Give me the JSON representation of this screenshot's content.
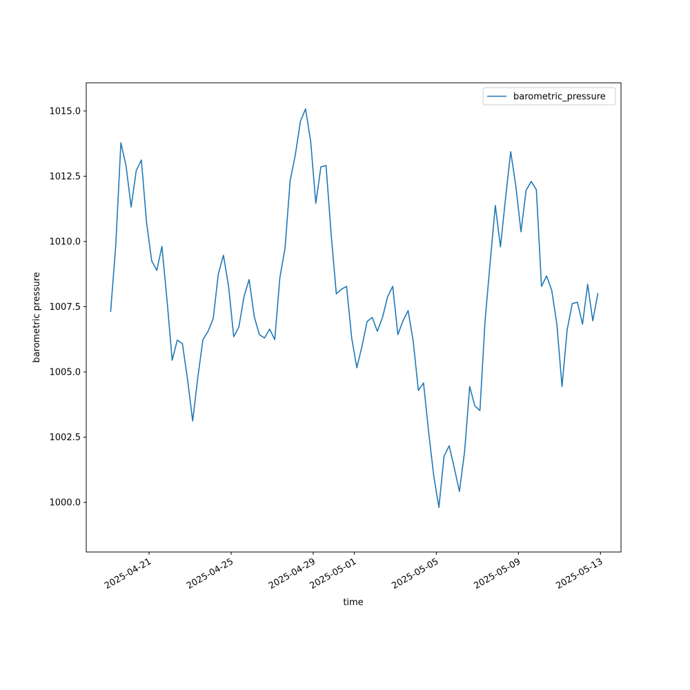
{
  "chart_data": {
    "type": "line",
    "xlabel": "time",
    "ylabel": "barometric pressure",
    "legend": "upper right",
    "x": [
      "2025-04-19 03:00",
      "2025-04-19 09:00",
      "2025-04-19 15:00",
      "2025-04-19 21:00",
      "2025-04-20 03:00",
      "2025-04-20 09:00",
      "2025-04-20 15:00",
      "2025-04-20 21:00",
      "2025-04-21 03:00",
      "2025-04-21 09:00",
      "2025-04-21 15:00",
      "2025-04-21 21:00",
      "2025-04-22 03:00",
      "2025-04-22 09:00",
      "2025-04-22 15:00",
      "2025-04-22 21:00",
      "2025-04-23 03:00",
      "2025-04-23 09:00",
      "2025-04-23 15:00",
      "2025-04-23 21:00",
      "2025-04-24 03:00",
      "2025-04-24 09:00",
      "2025-04-24 15:00",
      "2025-04-24 21:00",
      "2025-04-25 03:00",
      "2025-04-25 09:00",
      "2025-04-25 15:00",
      "2025-04-25 21:00",
      "2025-04-26 03:00",
      "2025-04-26 09:00",
      "2025-04-26 15:00",
      "2025-04-26 21:00",
      "2025-04-27 03:00",
      "2025-04-27 09:00",
      "2025-04-27 15:00",
      "2025-04-27 21:00",
      "2025-04-28 03:00",
      "2025-04-28 09:00",
      "2025-04-28 15:00",
      "2025-04-28 21:00",
      "2025-04-29 03:00",
      "2025-04-29 09:00",
      "2025-04-29 15:00",
      "2025-04-29 21:00",
      "2025-04-30 03:00",
      "2025-04-30 09:00",
      "2025-04-30 15:00",
      "2025-04-30 21:00",
      "2025-05-01 03:00",
      "2025-05-01 09:00",
      "2025-05-01 15:00",
      "2025-05-01 21:00",
      "2025-05-02 03:00",
      "2025-05-02 09:00",
      "2025-05-02 15:00",
      "2025-05-02 21:00",
      "2025-05-03 03:00",
      "2025-05-03 09:00",
      "2025-05-03 15:00",
      "2025-05-03 21:00",
      "2025-05-04 03:00",
      "2025-05-04 09:00",
      "2025-05-04 15:00",
      "2025-05-04 21:00",
      "2025-05-05 03:00",
      "2025-05-05 09:00",
      "2025-05-05 15:00",
      "2025-05-05 21:00",
      "2025-05-06 03:00",
      "2025-05-06 09:00",
      "2025-05-06 15:00",
      "2025-05-06 21:00",
      "2025-05-07 03:00",
      "2025-05-07 09:00",
      "2025-05-07 15:00",
      "2025-05-07 21:00",
      "2025-05-08 03:00",
      "2025-05-08 09:00",
      "2025-05-08 15:00",
      "2025-05-08 21:00",
      "2025-05-09 03:00",
      "2025-05-09 09:00",
      "2025-05-09 15:00",
      "2025-05-09 21:00",
      "2025-05-10 03:00",
      "2025-05-10 09:00",
      "2025-05-10 15:00",
      "2025-05-10 21:00",
      "2025-05-11 03:00",
      "2025-05-11 09:00",
      "2025-05-11 15:00",
      "2025-05-11 21:00",
      "2025-05-12 03:00",
      "2025-05-12 09:00",
      "2025-05-12 15:00",
      "2025-05-12 21:00"
    ],
    "series": [
      {
        "name": "barometric_pressure",
        "color": "#1f77b4",
        "values": [
          1007.3,
          1009.84,
          1013.78,
          1012.91,
          1011.32,
          1012.72,
          1013.12,
          1010.74,
          1009.26,
          1008.89,
          1009.81,
          1007.75,
          1005.45,
          1006.22,
          1006.08,
          1004.71,
          1003.12,
          1004.79,
          1006.24,
          1006.56,
          1007.04,
          1008.76,
          1009.47,
          1008.28,
          1006.35,
          1006.72,
          1007.88,
          1008.54,
          1007.12,
          1006.43,
          1006.3,
          1006.64,
          1006.24,
          1008.62,
          1009.74,
          1012.33,
          1013.31,
          1014.6,
          1015.08,
          1013.84,
          1011.46,
          1012.86,
          1012.91,
          1010.26,
          1007.99,
          1008.17,
          1008.28,
          1006.3,
          1005.16,
          1005.98,
          1006.93,
          1007.09,
          1006.56,
          1007.09,
          1007.88,
          1008.28,
          1006.43,
          1006.96,
          1007.35,
          1006.16,
          1004.29,
          1004.58,
          1002.7,
          1001.01,
          999.81,
          1001.77,
          1002.17,
          1001.32,
          1000.42,
          1001.93,
          1004.44,
          1003.7,
          1003.52,
          1006.96,
          1009.21,
          1011.38,
          1009.79,
          1011.67,
          1013.44,
          1012.12,
          1010.37,
          1011.96,
          1012.3,
          1011.98,
          1008.28,
          1008.68,
          1008.12,
          1006.83,
          1004.44,
          1006.61,
          1007.62,
          1007.67,
          1006.83,
          1008.36,
          1006.96,
          1008.02
        ]
      }
    ],
    "xlim": [
      "2025-04-17 22:30",
      "2025-05-14 00:00"
    ],
    "xticks": [
      "2025-04-21",
      "2025-04-25",
      "2025-04-29",
      "2025-05-01",
      "2025-05-05",
      "2025-05-09",
      "2025-05-13"
    ],
    "ylim": [
      998.1,
      1016.08
    ],
    "yticks": [
      {
        "value": 1000,
        "label": "1000.0"
      },
      {
        "value": 1002.5,
        "label": "1002.5"
      },
      {
        "value": 1005,
        "label": "1005.0"
      },
      {
        "value": 1007.5,
        "label": "1007.5"
      },
      {
        "value": 1010,
        "label": "1010.0"
      },
      {
        "value": 1012.5,
        "label": "1012.5"
      },
      {
        "value": 1015,
        "label": "1015.0"
      }
    ]
  }
}
